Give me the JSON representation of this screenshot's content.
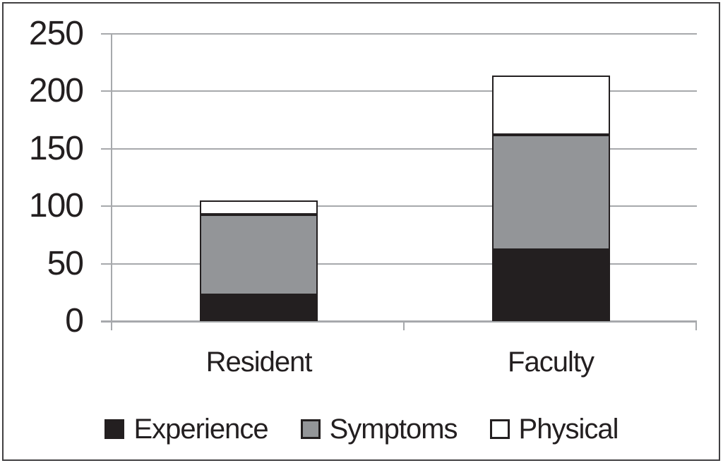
{
  "figure": {
    "background": "#ffffff",
    "border_color": "#414042"
  },
  "chart_data": {
    "type": "bar",
    "subtype": "stacked-vertical",
    "title": "",
    "xlabel": "",
    "ylabel": "",
    "categories": [
      "Resident",
      "Faculty"
    ],
    "series": [
      {
        "name": "Experience",
        "color": "#231f20",
        "values": [
          23,
          62
        ]
      },
      {
        "name": "Symptoms",
        "color": "#939598",
        "values": [
          70,
          100
        ]
      },
      {
        "name": "Physical",
        "color": "#ffffff",
        "values": [
          12,
          52
        ]
      }
    ],
    "stack_totals": [
      105,
      214
    ],
    "ylim": [
      0,
      250
    ],
    "yticks": [
      0,
      50,
      100,
      150,
      200,
      250
    ],
    "grid": true,
    "legend_position": "bottom",
    "style_colors": {
      "gridline": "#a7a9ac",
      "axis": "#a7a9ac",
      "text": "#231f20",
      "segment_border": "#231f20"
    }
  }
}
